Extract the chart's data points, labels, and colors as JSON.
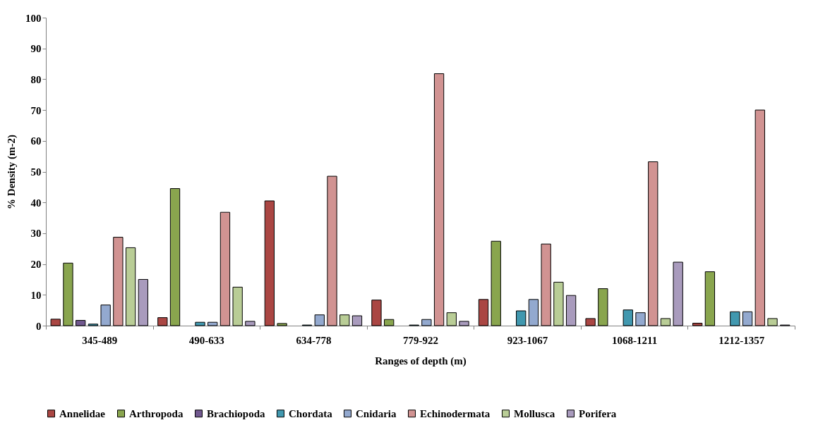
{
  "chart_data": {
    "type": "bar",
    "xlabel": "Ranges of depth (m)",
    "ylabel": "% Density (m-2)",
    "categories": [
      "345-489",
      "490-633",
      "634-778",
      "779-922",
      "923-1067",
      "1068-1211",
      "1212-1357"
    ],
    "series": [
      {
        "name": "Annelidae",
        "color": "#aa4643",
        "values": [
          2.1,
          2.6,
          40.5,
          8.3,
          8.5,
          2.3,
          0.8
        ]
      },
      {
        "name": "Arthropoda",
        "color": "#89a54e",
        "values": [
          20.3,
          44.5,
          0.7,
          2.0,
          27.4,
          12.0,
          17.5
        ]
      },
      {
        "name": "Brachiopoda",
        "color": "#71588f",
        "values": [
          1.7,
          null,
          null,
          null,
          null,
          null,
          null
        ]
      },
      {
        "name": "Chordata",
        "color": "#4198af",
        "values": [
          0.5,
          1.1,
          0.2,
          0.2,
          4.8,
          5.1,
          4.5
        ]
      },
      {
        "name": "Cnidaria",
        "color": "#93a9cf",
        "values": [
          6.7,
          1.1,
          3.5,
          2.0,
          8.5,
          4.2,
          4.5
        ]
      },
      {
        "name": "Echinodermata",
        "color": "#d19392",
        "values": [
          28.7,
          36.8,
          48.5,
          81.8,
          26.5,
          53.2,
          70.0
        ]
      },
      {
        "name": "Mollusca",
        "color": "#b9cd96",
        "values": [
          25.3,
          12.5,
          3.5,
          4.2,
          14.1,
          2.3,
          2.3
        ]
      },
      {
        "name": "Porifera",
        "color": "#a99bbd",
        "values": [
          15.0,
          1.4,
          3.2,
          1.4,
          9.8,
          20.6,
          0.2
        ]
      }
    ],
    "ylim": [
      0,
      100
    ],
    "yticks": [
      0,
      10,
      20,
      30,
      40,
      50,
      60,
      70,
      80,
      90,
      100
    ],
    "grid": false,
    "legend": "bottom"
  }
}
